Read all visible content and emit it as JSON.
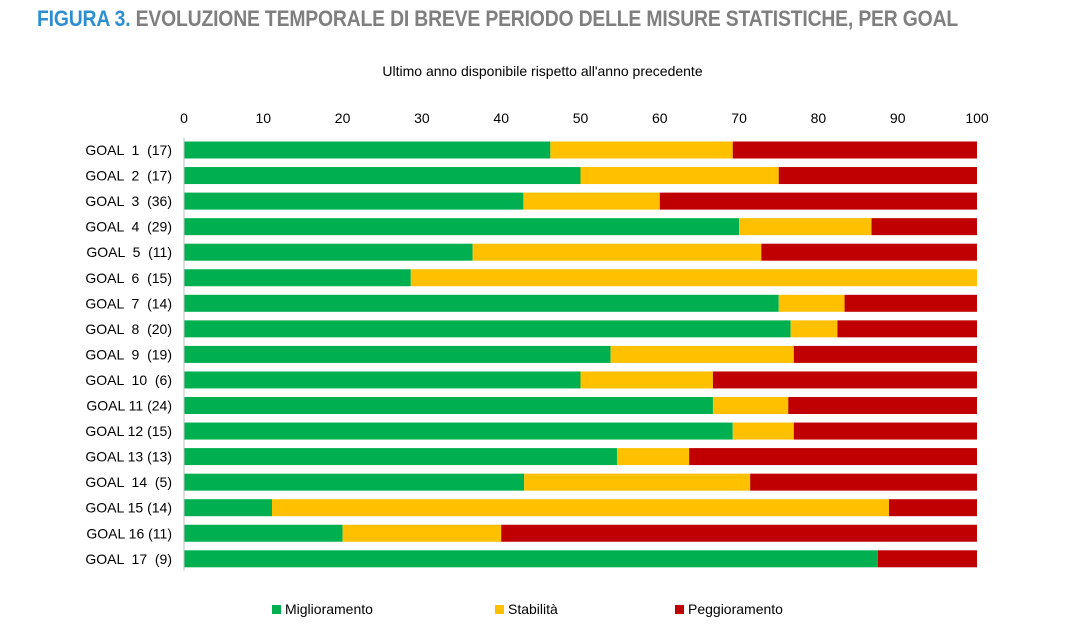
{
  "figure": {
    "prefix": "FIGURA 3.",
    "title": "EVOLUZIONE TEMPORALE DI BREVE PERIODO DELLE MISURE STATISTICHE, PER GOAL"
  },
  "chart_data": {
    "type": "bar",
    "orientation": "horizontal",
    "stacked": true,
    "subtitle": "Ultimo anno disponibile rispetto all'anno precedente",
    "xlim": [
      0,
      100
    ],
    "xticks": [
      "0",
      "10",
      "20",
      "30",
      "40",
      "50",
      "60",
      "70",
      "80",
      "90",
      "100"
    ],
    "grid": false,
    "legend_position": "bottom",
    "categories": [
      "GOAL  1  (17)",
      "GOAL  2  (17)",
      "GOAL  3  (36)",
      "GOAL  4  (29)",
      "GOAL  5  (11)",
      "GOAL  6  (15)",
      "GOAL  7  (14)",
      "GOAL  8  (20)",
      "GOAL  9  (19)",
      "GOAL  10  (6)",
      "GOAL 11 (24)",
      "GOAL 12 (15)",
      "GOAL 13 (13)",
      "GOAL  14  (5)",
      "GOAL 15 (14)",
      "GOAL 16 (11)",
      "GOAL  17  (9)"
    ],
    "series": [
      {
        "name": "Miglioramento",
        "color": "#00b050",
        "values": [
          46.2,
          50.0,
          42.8,
          70.0,
          36.4,
          28.6,
          75.0,
          76.5,
          53.8,
          50.0,
          66.7,
          69.2,
          54.6,
          42.9,
          11.1,
          20.0,
          87.5
        ]
      },
      {
        "name": "Stabilità",
        "color": "#ffc000",
        "values": [
          23.0,
          25.0,
          17.2,
          16.7,
          36.4,
          71.4,
          8.3,
          5.9,
          23.1,
          16.7,
          9.5,
          7.7,
          9.1,
          28.5,
          77.8,
          20.0,
          0.0
        ]
      },
      {
        "name": "Peggioramento",
        "color": "#c00000",
        "values": [
          30.8,
          25.0,
          40.0,
          13.3,
          27.2,
          0.0,
          16.7,
          17.6,
          23.1,
          33.3,
          23.8,
          23.1,
          36.3,
          28.6,
          11.1,
          60.0,
          12.5
        ]
      }
    ]
  }
}
